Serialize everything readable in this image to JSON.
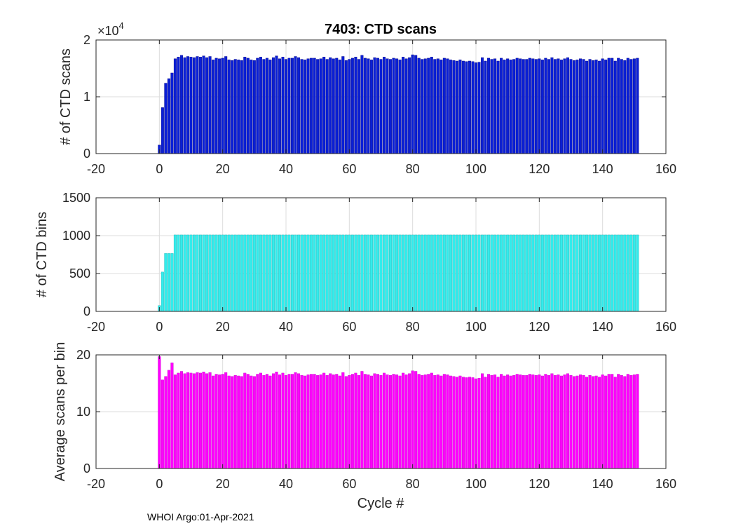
{
  "figure_title": "7403: CTD scans",
  "footer_text": "WHOI Argo:01-Apr-2021",
  "chart_data": [
    {
      "type": "bar",
      "ylabel": "# of CTD scans",
      "xlabel": "",
      "exponent_base": "×10",
      "exponent_power": "4",
      "xlim": [
        -20,
        160
      ],
      "ylim": [
        0,
        2
      ],
      "xticks": [
        -20,
        0,
        20,
        40,
        60,
        80,
        100,
        120,
        140,
        160
      ],
      "yticks": [
        0,
        1,
        2
      ],
      "grid": true,
      "color": "#0a1fd6",
      "edge_color": "#000080",
      "x_start": 0,
      "values": [
        0.15,
        0.81,
        1.24,
        1.32,
        1.42,
        1.67,
        1.7,
        1.73,
        1.69,
        1.71,
        1.7,
        1.69,
        1.71,
        1.7,
        1.72,
        1.69,
        1.71,
        1.65,
        1.68,
        1.67,
        1.68,
        1.71,
        1.65,
        1.64,
        1.66,
        1.65,
        1.64,
        1.7,
        1.68,
        1.65,
        1.64,
        1.68,
        1.7,
        1.66,
        1.68,
        1.65,
        1.69,
        1.72,
        1.67,
        1.7,
        1.66,
        1.68,
        1.68,
        1.71,
        1.69,
        1.66,
        1.65,
        1.67,
        1.68,
        1.68,
        1.66,
        1.67,
        1.7,
        1.66,
        1.69,
        1.67,
        1.68,
        1.65,
        1.71,
        1.64,
        1.66,
        1.68,
        1.7,
        1.66,
        1.73,
        1.68,
        1.67,
        1.65,
        1.69,
        1.68,
        1.66,
        1.7,
        1.67,
        1.66,
        1.68,
        1.67,
        1.65,
        1.7,
        1.67,
        1.69,
        1.74,
        1.73,
        1.68,
        1.66,
        1.67,
        1.68,
        1.7,
        1.66,
        1.67,
        1.65,
        1.68,
        1.67,
        1.65,
        1.64,
        1.63,
        1.65,
        1.63,
        1.62,
        1.63,
        1.62,
        1.6,
        1.61,
        1.69,
        1.63,
        1.68,
        1.66,
        1.67,
        1.63,
        1.68,
        1.65,
        1.67,
        1.65,
        1.66,
        1.68,
        1.67,
        1.66,
        1.66,
        1.68,
        1.67,
        1.66,
        1.67,
        1.65,
        1.68,
        1.66,
        1.69,
        1.66,
        1.67,
        1.65,
        1.67,
        1.69,
        1.66,
        1.64,
        1.65,
        1.67,
        1.66,
        1.63,
        1.66,
        1.64,
        1.65,
        1.63,
        1.67,
        1.65,
        1.68,
        1.68,
        1.63,
        1.68,
        1.66,
        1.64,
        1.68,
        1.66,
        1.67,
        1.68
      ]
    },
    {
      "type": "bar",
      "ylabel": "# of CTD bins",
      "xlabel": "",
      "xlim": [
        -20,
        160
      ],
      "ylim": [
        0,
        1500
      ],
      "xticks": [
        -20,
        0,
        20,
        40,
        60,
        80,
        100,
        120,
        140,
        160
      ],
      "yticks": [
        0,
        500,
        1000,
        1500
      ],
      "grid": true,
      "color": "#33ecec",
      "edge_color": "#20b2b2",
      "x_start": 0,
      "values": [
        76,
        520,
        765,
        765,
        765,
        1010,
        1010,
        1010,
        1010,
        1010,
        1010,
        1010,
        1010,
        1010,
        1010,
        1010,
        1010,
        1010,
        1010,
        1010,
        1010,
        1010,
        1010,
        1010,
        1010,
        1010,
        1010,
        1010,
        1010,
        1010,
        1010,
        1010,
        1010,
        1010,
        1010,
        1010,
        1010,
        1010,
        1010,
        1010,
        1010,
        1010,
        1010,
        1010,
        1010,
        1010,
        1010,
        1010,
        1010,
        1010,
        1010,
        1010,
        1010,
        1010,
        1010,
        1010,
        1010,
        1010,
        1010,
        1010,
        1010,
        1010,
        1010,
        1010,
        1010,
        1010,
        1010,
        1010,
        1010,
        1010,
        1010,
        1010,
        1010,
        1010,
        1010,
        1010,
        1010,
        1010,
        1010,
        1010,
        1010,
        1010,
        1010,
        1010,
        1010,
        1010,
        1010,
        1010,
        1010,
        1010,
        1010,
        1010,
        1010,
        1010,
        1010,
        1010,
        1010,
        1010,
        1010,
        1010,
        1010,
        1010,
        1010,
        1010,
        1010,
        1010,
        1010,
        1010,
        1010,
        1010,
        1010,
        1010,
        1010,
        1010,
        1010,
        1010,
        1010,
        1010,
        1010,
        1010,
        1010,
        1010,
        1010,
        1010,
        1010,
        1010,
        1010,
        1010,
        1010,
        1010,
        1010,
        1010,
        1010,
        1010,
        1010,
        1010,
        1010,
        1010,
        1010,
        1010,
        1010,
        1010,
        1010,
        1010,
        1010,
        1010,
        1010,
        1010,
        1010,
        1010,
        1010,
        1010
      ]
    },
    {
      "type": "bar",
      "ylabel": "Average scans per bin",
      "xlabel": "Cycle #",
      "xlim": [
        -20,
        160
      ],
      "ylim": [
        0,
        20
      ],
      "xticks": [
        -20,
        0,
        20,
        40,
        60,
        80,
        100,
        120,
        140,
        160
      ],
      "yticks": [
        0,
        10,
        20
      ],
      "grid": true,
      "color": "#ff00ff",
      "edge_color": "#c000c0",
      "x_start": 0,
      "values": [
        19.7,
        15.6,
        16.2,
        17.3,
        18.6,
        16.5,
        16.8,
        17.1,
        16.7,
        16.9,
        16.8,
        16.7,
        16.9,
        16.8,
        17.0,
        16.7,
        16.9,
        16.3,
        16.6,
        16.5,
        16.6,
        16.9,
        16.3,
        16.2,
        16.4,
        16.3,
        16.2,
        16.8,
        16.6,
        16.3,
        16.2,
        16.6,
        16.8,
        16.4,
        16.6,
        16.3,
        16.7,
        17.0,
        16.5,
        16.8,
        16.4,
        16.6,
        16.6,
        16.9,
        16.7,
        16.4,
        16.3,
        16.5,
        16.6,
        16.6,
        16.4,
        16.5,
        16.8,
        16.4,
        16.7,
        16.5,
        16.6,
        16.3,
        16.9,
        16.2,
        16.4,
        16.6,
        16.8,
        16.4,
        17.1,
        16.6,
        16.5,
        16.3,
        16.7,
        16.6,
        16.4,
        16.8,
        16.5,
        16.4,
        16.6,
        16.5,
        16.3,
        16.8,
        16.5,
        16.7,
        17.2,
        17.1,
        16.6,
        16.4,
        16.5,
        16.6,
        16.8,
        16.4,
        16.5,
        16.3,
        16.6,
        16.5,
        16.3,
        16.2,
        16.1,
        16.3,
        16.1,
        16.0,
        16.1,
        16.0,
        15.8,
        15.9,
        16.7,
        16.1,
        16.6,
        16.4,
        16.5,
        16.1,
        16.6,
        16.3,
        16.5,
        16.3,
        16.4,
        16.6,
        16.5,
        16.4,
        16.4,
        16.6,
        16.5,
        16.4,
        16.5,
        16.3,
        16.6,
        16.4,
        16.7,
        16.4,
        16.5,
        16.3,
        16.5,
        16.7,
        16.4,
        16.2,
        16.3,
        16.5,
        16.4,
        16.1,
        16.4,
        16.2,
        16.3,
        16.1,
        16.5,
        16.3,
        16.6,
        16.6,
        16.1,
        16.6,
        16.4,
        16.2,
        16.6,
        16.4,
        16.5,
        16.6
      ]
    }
  ]
}
